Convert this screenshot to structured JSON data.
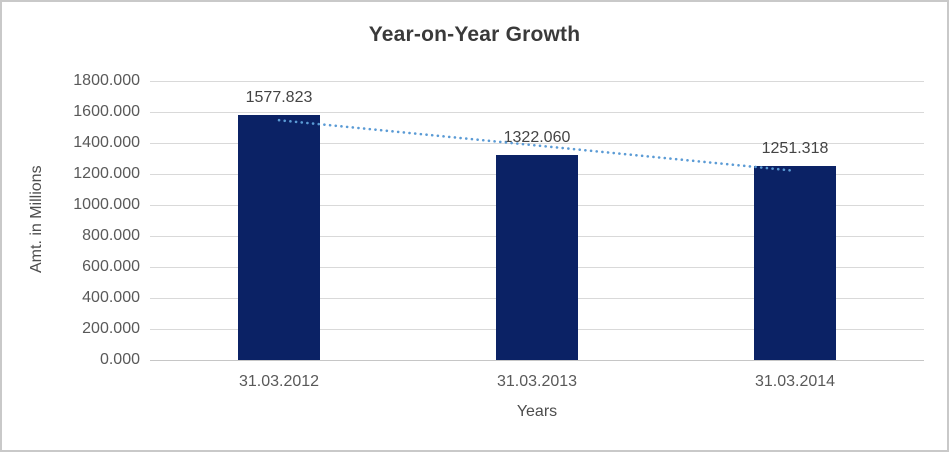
{
  "chart_data": {
    "type": "bar",
    "title": "Year-on-Year Growth",
    "xlabel": "Years",
    "ylabel": "Amt. in Millions",
    "categories": [
      "31.03.2012",
      "31.03.2013",
      "31.03.2014"
    ],
    "values": [
      1577.823,
      1322.06,
      1251.318
    ],
    "data_labels": [
      "1577.823",
      "1322.060",
      "1251.318"
    ],
    "ylim": [
      0,
      1800
    ],
    "ytick_step": 200,
    "ytick_labels": [
      "0.000",
      "200.000",
      "400.000",
      "600.000",
      "800.000",
      "1000.000",
      "1200.000",
      "1400.000",
      "1600.000",
      "1800.000"
    ],
    "grid": true,
    "legend": "none",
    "trendline": {
      "type": "linear",
      "style": "dotted"
    },
    "colors": {
      "bar": "#0b2265",
      "trendline": "#5b9bd5",
      "gridline": "#d9d9d9",
      "axis_line": "#c6c6c6",
      "title_text": "#3a3a3a",
      "tick_text": "#595959",
      "data_label_text": "#444444"
    }
  }
}
